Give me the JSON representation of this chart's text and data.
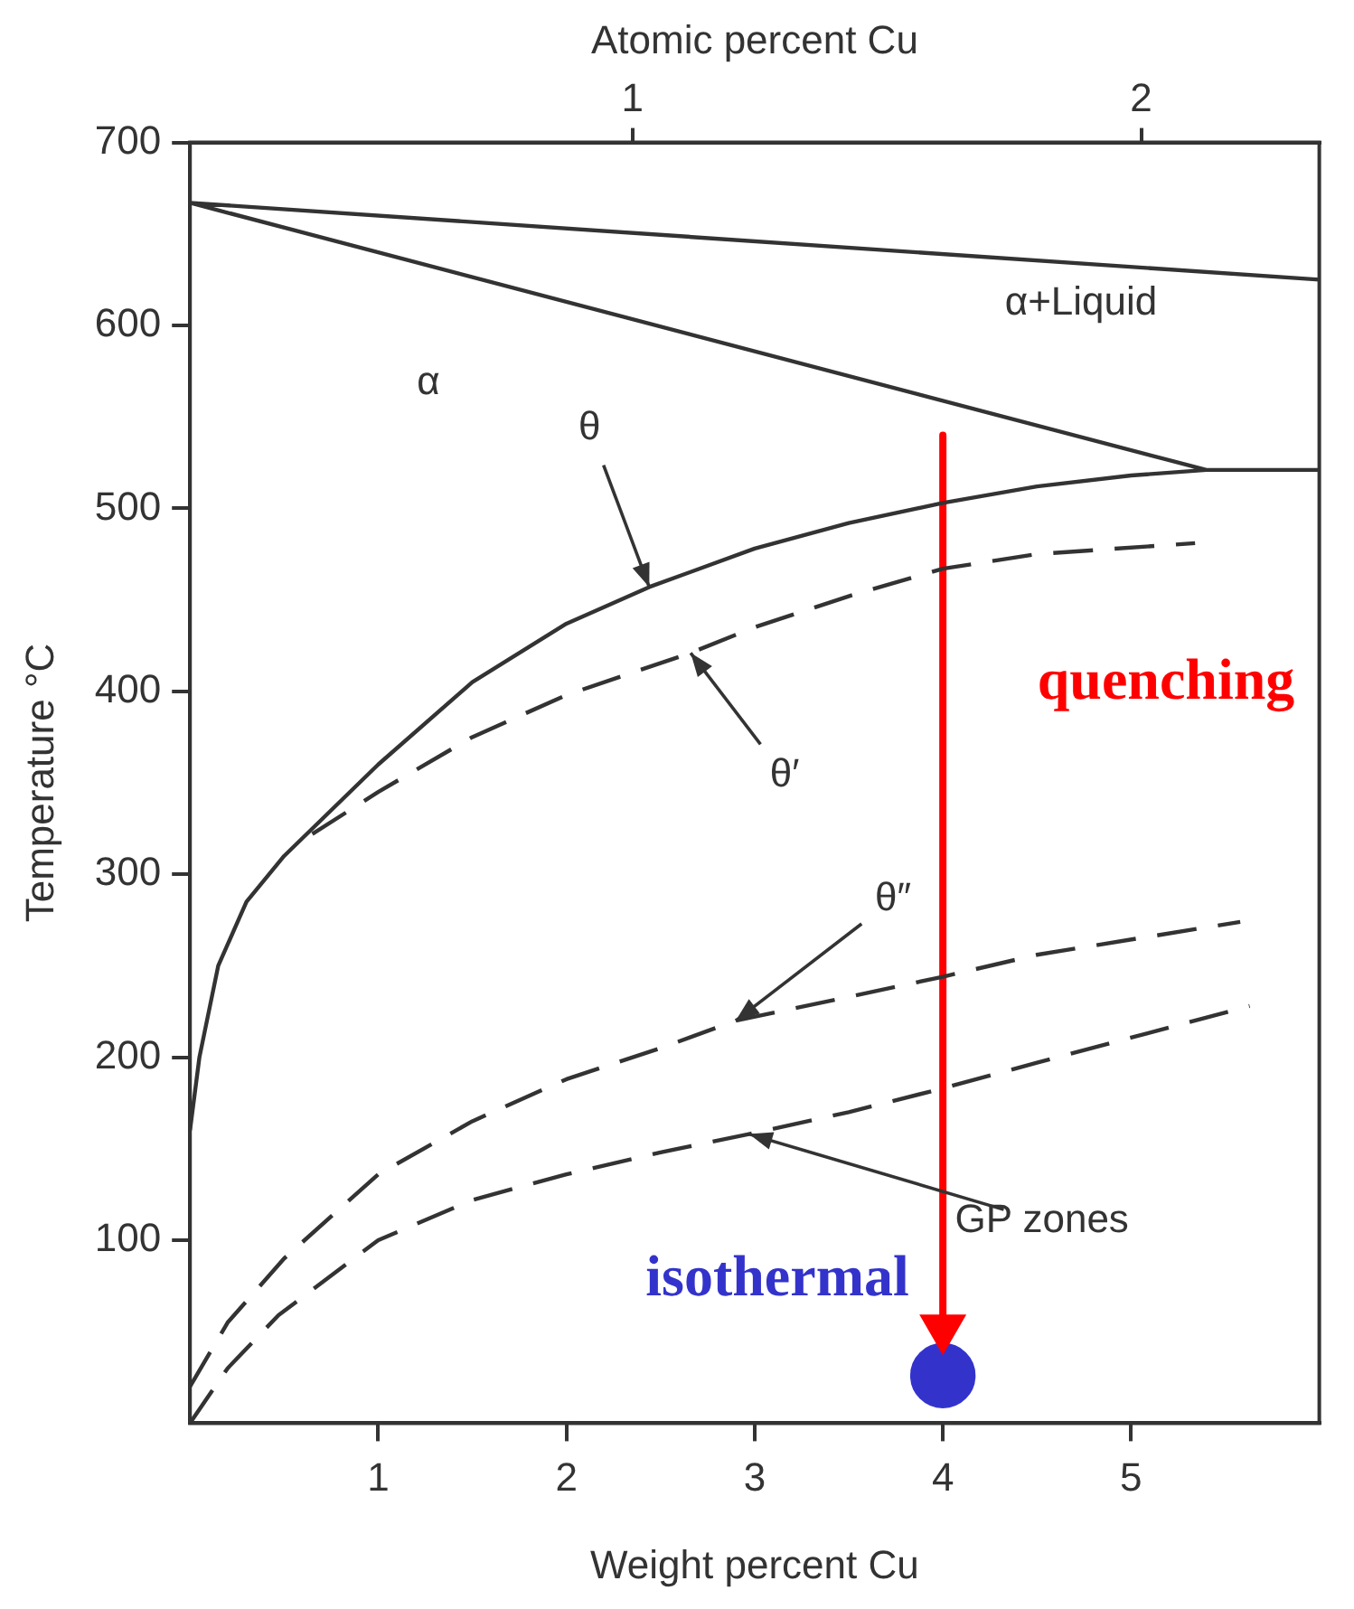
{
  "chart_data": {
    "type": "line",
    "xlabel": "Weight percent Cu",
    "ylabel": "Temperature °C",
    "x2label": "Atomic percent Cu",
    "xlim": [
      0,
      6
    ],
    "xticks": [
      1,
      2,
      3,
      4,
      5
    ],
    "ylim": [
      0,
      700
    ],
    "yticks": [
      100,
      200,
      300,
      400,
      500,
      600,
      700
    ],
    "x2lim": [
      0.13,
      2.35
    ],
    "x2ticks": [
      1,
      2
    ],
    "grid": false,
    "legend": false,
    "marker": "none",
    "series": [
      {
        "color": "#333333",
        "line_style": "solid",
        "x": [
          6,
          0,
          5.4,
          6,
          5.4,
          5,
          4.5,
          4,
          3.5,
          3,
          2.44,
          2,
          1.5,
          1,
          0.7,
          0.5,
          0.3,
          0.15,
          0.05,
          0
        ],
        "values": [
          625,
          667,
          521,
          521,
          521,
          518,
          512,
          503,
          492,
          478,
          457,
          437,
          405,
          360,
          330,
          310,
          285,
          250,
          200,
          160
        ]
      },
      {
        "color": "#333333",
        "line_style": "dashed",
        "x": [
          0.65,
          1,
          1.5,
          2,
          2.66,
          3,
          3.5,
          4,
          4.5,
          5.34
        ],
        "values": [
          322,
          345,
          375,
          398,
          421,
          435,
          452,
          467,
          475,
          481
        ]
      },
      {
        "color": "#333333",
        "line_style": "dashed",
        "x": [
          0,
          0.2,
          0.5,
          1,
          1.5,
          2,
          2.5,
          2.9,
          3.5,
          4,
          4.5,
          5.58
        ],
        "values": [
          20,
          55,
          90,
          136,
          165,
          188,
          205,
          220,
          233,
          244,
          256,
          274
        ]
      },
      {
        "color": "#333333",
        "line_style": "dashed",
        "x": [
          0,
          0.2,
          0.47,
          1,
          1.5,
          2,
          2.5,
          2.97,
          3.5,
          4,
          4.5,
          5.63
        ],
        "values": [
          0,
          30,
          59,
          100,
          122,
          136,
          148,
          158,
          170,
          183,
          197,
          228
        ]
      },
      {
        "color": "#ff0000",
        "line_style": "solid",
        "marker": "triangle",
        "x": [
          4,
          4
        ],
        "values": [
          540,
          52
        ]
      },
      {
        "type": "scatter",
        "marker": "circle",
        "color": "#3333cc",
        "x": [
          4
        ],
        "values": [
          26
        ]
      }
    ],
    "annotations": [
      "α",
      "α+Liquid",
      {
        "text": "θ",
        "x": 2.44,
        "y": 457
      },
      {
        "text": "θ′",
        "x": 2.66,
        "y": 421
      },
      {
        "text": "θ″",
        "x": 2.9,
        "y": 220
      },
      {
        "text": "GP zones",
        "x": 2.97,
        "y": 158
      },
      "quenching",
      "isothermal"
    ]
  }
}
